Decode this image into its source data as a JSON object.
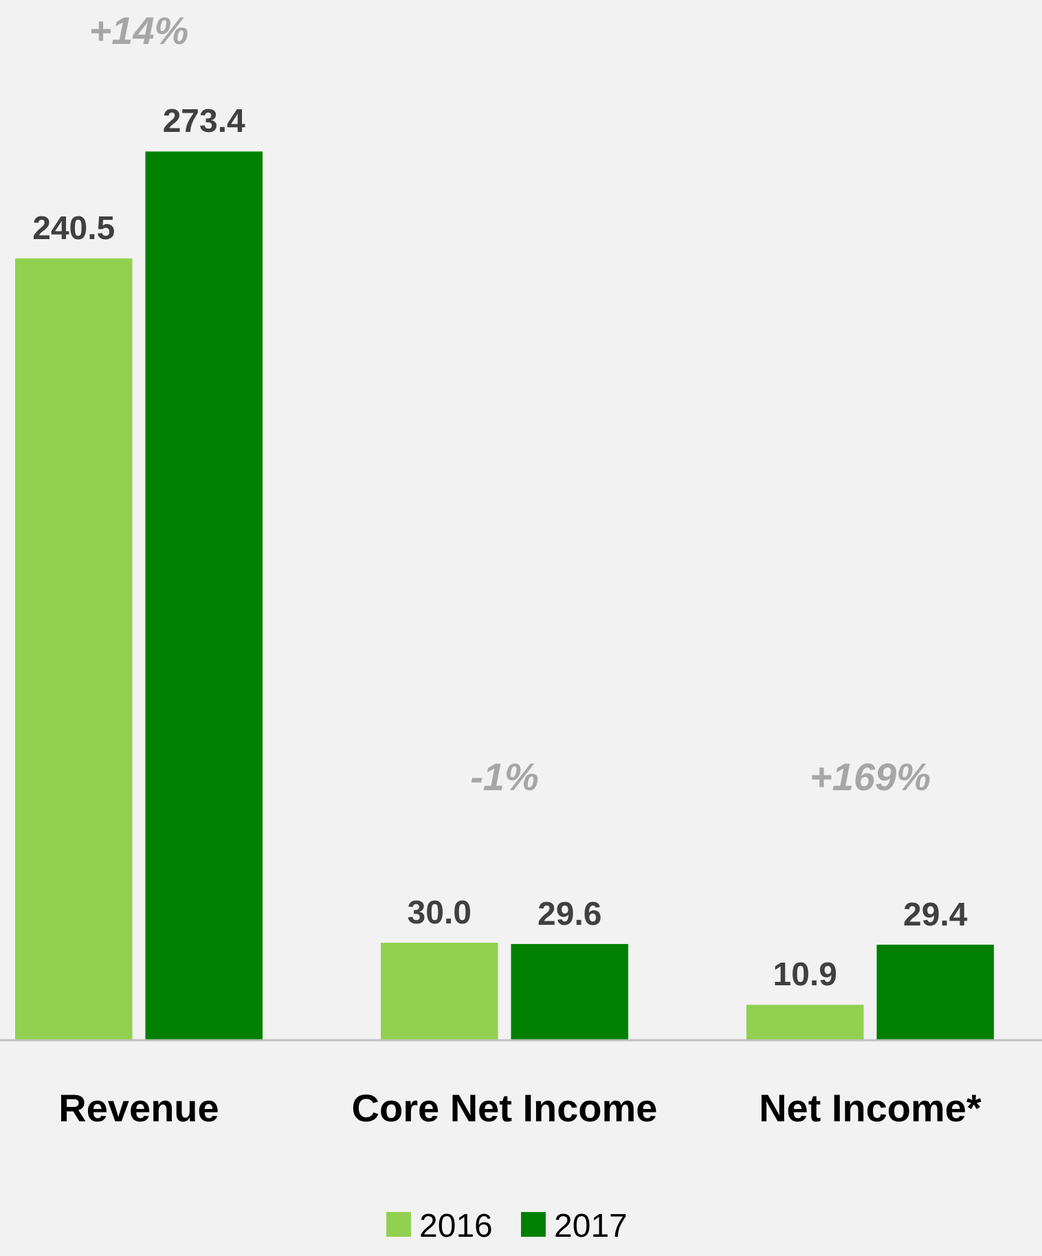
{
  "chart_data": {
    "type": "bar",
    "categories": [
      "Revenue",
      "Core Net Income",
      "Net Income*"
    ],
    "series": [
      {
        "name": "2016",
        "color": "#92d050",
        "values": [
          240.5,
          30.0,
          10.9
        ],
        "value_labels": [
          "240.5",
          "30.0",
          "10.9"
        ]
      },
      {
        "name": "2017",
        "color": "#008000",
        "values": [
          273.4,
          29.6,
          29.4
        ],
        "value_labels": [
          "273.4",
          "29.6",
          "29.4"
        ]
      }
    ],
    "ylim": [
      0,
      320
    ],
    "legend": "bottom",
    "grid": false,
    "annotations": [
      "+14%",
      "-1%",
      "+169%"
    ]
  }
}
